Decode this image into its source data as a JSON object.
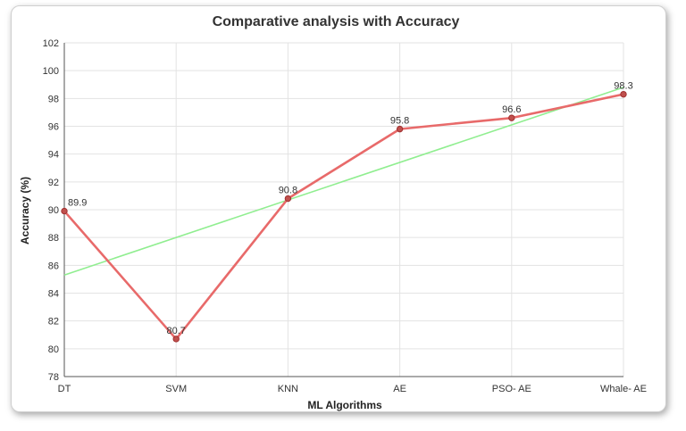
{
  "chart_data": {
    "type": "line",
    "title": "Comparative analysis with Accuracy",
    "xlabel": "ML Algorithms",
    "ylabel": "Accuracy (%)",
    "categories": [
      "DT",
      "SVM",
      "KNN",
      "AE",
      "PSO- AE",
      "Whale- AE"
    ],
    "series": [
      {
        "values": [
          89.9,
          80.7,
          90.8,
          95.8,
          96.6,
          98.3
        ],
        "color": "#e86a6a",
        "data_labels": [
          "89.9",
          "80.7",
          "90.8",
          "95.8",
          "96.6",
          "98.3"
        ]
      }
    ],
    "trendline": {
      "start": 85.3,
      "end": 98.8,
      "color": "#90ee90"
    },
    "ylim": [
      78,
      102
    ],
    "ytick_step": 2,
    "grid": true
  }
}
